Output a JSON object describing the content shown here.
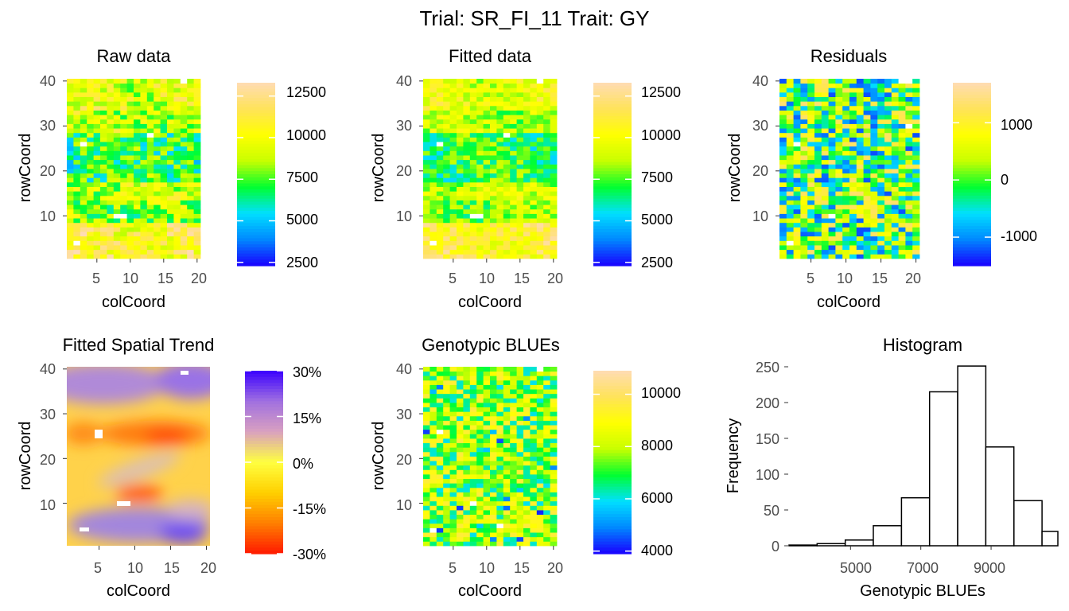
{
  "figure_title": "Trial: SR_FI_11 Trait: GY",
  "chart_data": [
    {
      "type": "heatmap",
      "title": "Raw data",
      "xlabel": "colCoord",
      "ylabel": "rowCoord",
      "x_ticks": [
        "5",
        "10",
        "15",
        "20"
      ],
      "y_ticks": [
        "10",
        "20",
        "30",
        "40"
      ],
      "xlim": [
        1,
        20
      ],
      "ylim": [
        1,
        40
      ],
      "colorbar": {
        "ticks": [
          "12500",
          "10000",
          "7500",
          "5000",
          "2500"
        ],
        "tick_values": [
          12500,
          10000,
          7500,
          5000,
          2500
        ],
        "range": [
          2300,
          13300
        ],
        "palette": [
          "#1a00ff",
          "#0088ff",
          "#00e0ff",
          "#00ff30",
          "#c8ff00",
          "#ffff00",
          "#ffe35a",
          "#ffdcb4"
        ]
      }
    },
    {
      "type": "heatmap",
      "title": "Fitted data",
      "xlabel": "colCoord",
      "ylabel": "rowCoord",
      "x_ticks": [
        "5",
        "10",
        "15",
        "20"
      ],
      "y_ticks": [
        "10",
        "20",
        "30",
        "40"
      ],
      "xlim": [
        1,
        20
      ],
      "ylim": [
        1,
        40
      ],
      "colorbar": {
        "ticks": [
          "12500",
          "10000",
          "7500",
          "5000",
          "2500"
        ],
        "tick_values": [
          12500,
          10000,
          7500,
          5000,
          2500
        ],
        "range": [
          2300,
          13300
        ],
        "palette": [
          "#1a00ff",
          "#0088ff",
          "#00e0ff",
          "#00ff30",
          "#c8ff00",
          "#ffff00",
          "#ffe35a",
          "#ffdcb4"
        ]
      }
    },
    {
      "type": "heatmap",
      "title": "Residuals",
      "xlabel": "colCoord",
      "ylabel": "rowCoord",
      "x_ticks": [
        "5",
        "10",
        "15",
        "20"
      ],
      "y_ticks": [
        "10",
        "20",
        "30",
        "40"
      ],
      "xlim": [
        1,
        20
      ],
      "ylim": [
        1,
        40
      ],
      "colorbar": {
        "ticks": [
          "1000",
          "0",
          "-1000"
        ],
        "tick_values": [
          1000,
          0,
          -1000
        ],
        "range": [
          -1500,
          1700
        ],
        "palette": [
          "#1a00ff",
          "#0088ff",
          "#00e0ff",
          "#00ff30",
          "#c8ff00",
          "#ffff00",
          "#ffe35a",
          "#ffdcb4"
        ]
      }
    },
    {
      "type": "heatmap",
      "title": "Fitted Spatial Trend",
      "xlabel": "colCoord",
      "ylabel": "rowCoord",
      "x_ticks": [
        "5",
        "10",
        "15",
        "20"
      ],
      "y_ticks": [
        "10",
        "20",
        "30",
        "40"
      ],
      "xlim": [
        1,
        20
      ],
      "ylim": [
        1,
        40
      ],
      "colorbar": {
        "ticks": [
          "30%",
          "15%",
          "0%",
          "-15%",
          "-30%"
        ],
        "tick_values": [
          30,
          15,
          0,
          -15,
          -30
        ],
        "range": [
          -30,
          30
        ],
        "palette": [
          "#ff1a00",
          "#ff7f00",
          "#ffd000",
          "#ffff40",
          "#d9a0c0",
          "#a070e0",
          "#3a00ff"
        ]
      }
    },
    {
      "type": "heatmap",
      "title": "Genotypic BLUEs",
      "xlabel": "colCoord",
      "ylabel": "rowCoord",
      "x_ticks": [
        "5",
        "10",
        "15",
        "20"
      ],
      "y_ticks": [
        "10",
        "20",
        "30",
        "40"
      ],
      "xlim": [
        1,
        20
      ],
      "ylim": [
        1,
        40
      ],
      "colorbar": {
        "ticks": [
          "10000",
          "8000",
          "6000",
          "4000"
        ],
        "tick_values": [
          10000,
          8000,
          6000,
          4000
        ],
        "range": [
          3900,
          10900
        ],
        "palette": [
          "#1a00ff",
          "#0088ff",
          "#00e0ff",
          "#00ff30",
          "#c8ff00",
          "#ffff00",
          "#ffe35a",
          "#ffdcb4"
        ]
      }
    },
    {
      "type": "bar",
      "title": "Histogram",
      "xlabel": "Genotypic BLUEs",
      "ylabel": "Frequency",
      "x_ticks": [
        "5000",
        "7000",
        "9000"
      ],
      "y_ticks": [
        "0",
        "50",
        "100",
        "150",
        "200",
        "250"
      ],
      "xlim": [
        3250,
        10900
      ],
      "ylim": [
        0,
        250
      ],
      "bin_edges": [
        3250,
        4050,
        4850,
        5650,
        6450,
        7250,
        8050,
        8850,
        9650,
        10450,
        10900
      ],
      "values": [
        1,
        3,
        8,
        28,
        67,
        215,
        251,
        138,
        63,
        20
      ],
      "grid": false
    }
  ]
}
